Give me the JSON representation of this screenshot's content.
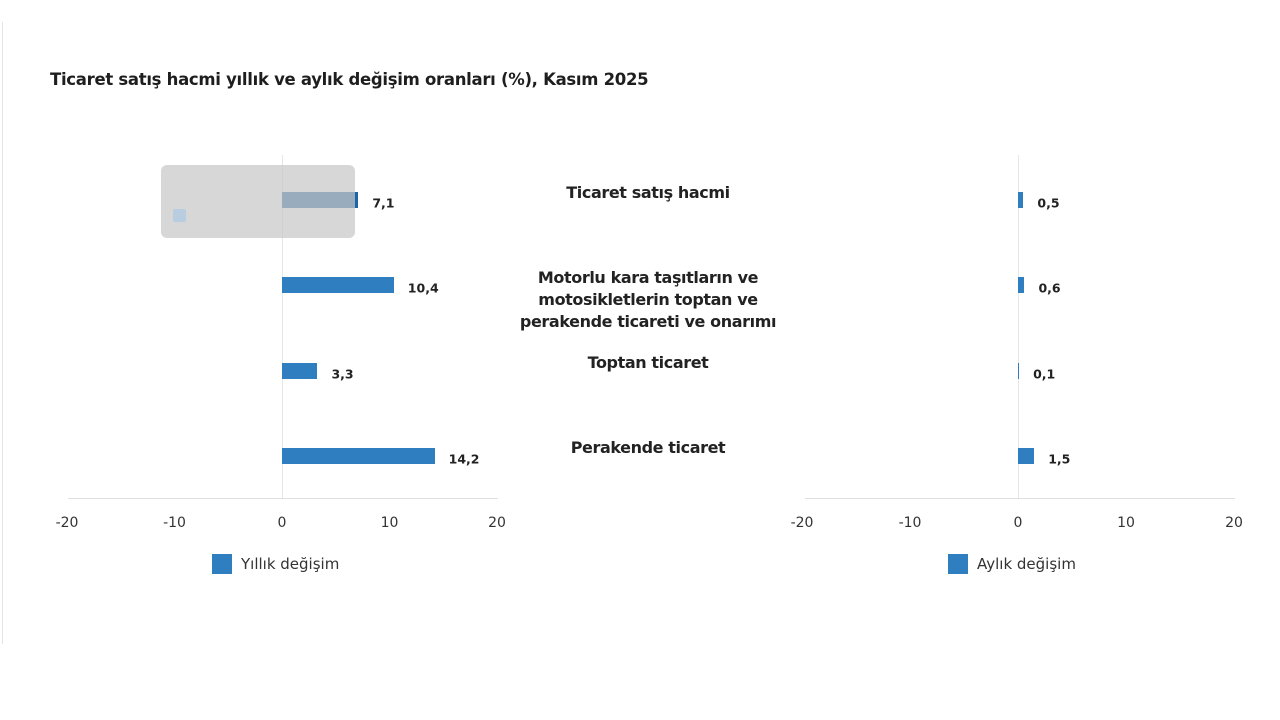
{
  "title": "Ticaret satış hacmi yıllık ve aylık değişim oranları (%), Kasım 2025",
  "categories": [
    "Ticaret satış hacmi",
    "Motorlu kara taşıtların ve motosikletlerin toptan ve perakende ticareti ve onarımı",
    "Toptan ticaret",
    "Perakende ticaret"
  ],
  "category_lines": [
    [
      "Ticaret satış hacmi"
    ],
    [
      "Motorlu kara taşıtların ve",
      "motosikletlerin toptan ve",
      "perakende ticareti ve onarımı"
    ],
    [
      "Toptan ticaret"
    ],
    [
      "Perakende ticaret"
    ]
  ],
  "left_chart": {
    "legend": "Yıllık değişim",
    "ticks": [
      "-20",
      "-10",
      "0",
      "10",
      "20"
    ],
    "labels": [
      "7,1",
      "10,4",
      "3,3",
      "14,2"
    ]
  },
  "right_chart": {
    "legend": "Aylık değişim",
    "ticks": [
      "-20",
      "-10",
      "0",
      "10",
      "20"
    ],
    "labels": [
      "0,5",
      "0,6",
      "0,1",
      "1,5"
    ]
  },
  "colors": {
    "bar": "#2f7ebf",
    "bar_highlight": "#1f65a3",
    "tooltip": "#c8c8c8"
  },
  "chart_data": [
    {
      "type": "bar",
      "orientation": "horizontal",
      "title": "Ticaret satış hacmi yıllık ve aylık değişim oranları (%), Kasım 2025",
      "categories": [
        "Ticaret satış hacmi",
        "Motorlu kara taşıtların ve motosikletlerin toptan ve perakende ticareti ve onarımı",
        "Toptan ticaret",
        "Perakende ticaret"
      ],
      "series": [
        {
          "name": "Yıllık değişim",
          "values": [
            7.1,
            10.4,
            3.3,
            14.2
          ]
        }
      ],
      "xlabel": "",
      "ylabel": "",
      "xlim": [
        -20,
        20
      ],
      "xticks": [
        -20,
        -10,
        0,
        10,
        20
      ],
      "legend_position": "bottom",
      "grid": false
    },
    {
      "type": "bar",
      "orientation": "horizontal",
      "categories": [
        "Ticaret satış hacmi",
        "Motorlu kara taşıtların ve motosikletlerin toptan ve perakende ticareti ve onarımı",
        "Toptan ticaret",
        "Perakende ticaret"
      ],
      "series": [
        {
          "name": "Aylık değişim",
          "values": [
            0.5,
            0.6,
            0.1,
            1.5
          ]
        }
      ],
      "xlabel": "",
      "ylabel": "",
      "xlim": [
        -20,
        20
      ],
      "xticks": [
        -20,
        -10,
        0,
        10,
        20
      ],
      "legend_position": "bottom",
      "grid": false
    }
  ]
}
